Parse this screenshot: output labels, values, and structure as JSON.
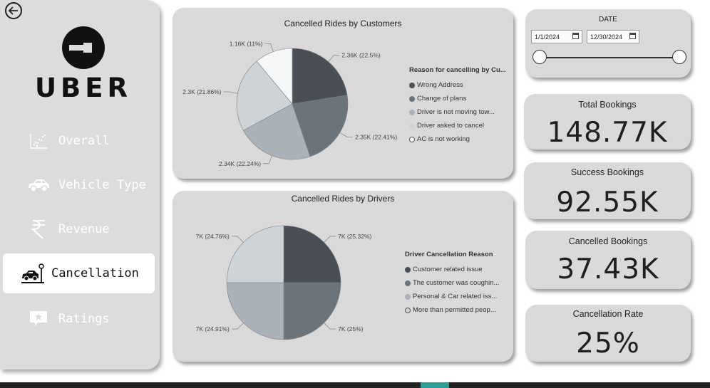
{
  "sidebar": {
    "logo_text": "UBER",
    "items": [
      {
        "label": "Overall",
        "icon": "scatter-chart-icon"
      },
      {
        "label": "Vehicle Type",
        "icon": "car-icon"
      },
      {
        "label": "Revenue",
        "icon": "rupee-icon"
      },
      {
        "label": "Cancellation",
        "icon": "cancelled-car-icon",
        "active": true
      },
      {
        "label": "Ratings",
        "icon": "star-rating-icon"
      }
    ]
  },
  "date_filter": {
    "title": "DATE",
    "start": "1/1/2024",
    "end": "12/30/2024"
  },
  "kpis": [
    {
      "title": "Total Bookings",
      "value": "148.77K"
    },
    {
      "title": "Success Bookings",
      "value": "92.55K"
    },
    {
      "title": "Cancelled Bookings",
      "value": "37.43K"
    },
    {
      "title": "Cancellation Rate",
      "value": "25%"
    }
  ],
  "colors": {
    "slice_1": "#4a4f55",
    "slice_2": "#6b737b",
    "slice_3": "#aab1b8",
    "slice_4": "#ced3d8",
    "slice_5": "#f5f6f8",
    "card_bg": "#d9d9d9",
    "sidebar_bg": "#dcdcdc"
  },
  "chart_data": [
    {
      "type": "pie",
      "title": "Cancelled Rides by Customers",
      "legend_title": "Reason for cancelling by Cu...",
      "legend_position": "right",
      "labels": [
        "Wrong Address",
        "Change of plans",
        "Driver is not moving tow...",
        "Driver asked to cancel",
        "AC is not working"
      ],
      "values": [
        2.36,
        2.35,
        2.34,
        2.3,
        1.16
      ],
      "percents": [
        22.5,
        22.41,
        22.24,
        21.86,
        11
      ],
      "data_labels": [
        "2.36K (22.5%)",
        "2.35K (22.41%)",
        "2.34K (22.24%)",
        "2.3K (21.86%)",
        "1.16K (11%)"
      ]
    },
    {
      "type": "pie",
      "title": "Cancelled Rides by Drivers",
      "legend_title": "Driver Cancellation Reason",
      "legend_position": "right",
      "labels": [
        "Customer related issue",
        "The customer was coughin...",
        "Personal & Car related iss...",
        "More than permitted peop..."
      ],
      "values": [
        7,
        7,
        7,
        7
      ],
      "percents": [
        25.32,
        25,
        24.91,
        24.76
      ],
      "data_labels": [
        "7K (25.32%)",
        "7K (25%)",
        "7K (24.91%)",
        "7K (24.76%)"
      ]
    }
  ]
}
